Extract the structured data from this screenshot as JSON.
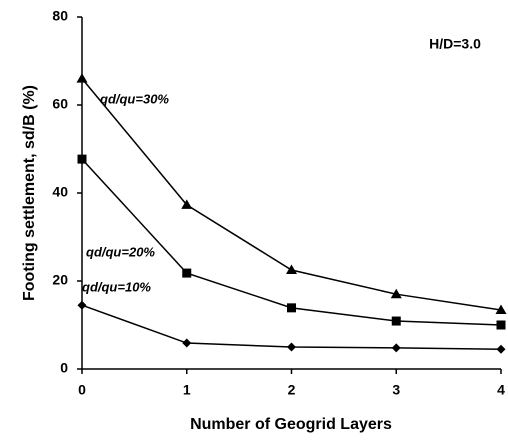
{
  "chart_data": {
    "type": "line",
    "x_label": "Number of Geogrid Layers",
    "y_label": "Footing settlement, sd/B (%)",
    "annotation": "H/D=3.0",
    "x": [
      0,
      1,
      2,
      3,
      4
    ],
    "xlim": [
      0,
      4
    ],
    "xticks": [
      0,
      1,
      2,
      3,
      4
    ],
    "ylim": [
      0,
      80
    ],
    "yticks": [
      0,
      20,
      40,
      60,
      80
    ],
    "grid": false,
    "series": [
      {
        "name": "qd/qu=30%",
        "color": "#000000",
        "marker": "triangle",
        "values": [
          66,
          37.3,
          22.5,
          17,
          13.4
        ]
      },
      {
        "name": "qd/qu=20%",
        "color": "#000000",
        "marker": "square",
        "values": [
          47.7,
          21.8,
          13.9,
          10.9,
          10
        ]
      },
      {
        "name": "qd/qu=10%",
        "color": "#000000",
        "marker": "diamond",
        "values": [
          14.5,
          5.9,
          5,
          4.8,
          4.5
        ]
      }
    ]
  }
}
